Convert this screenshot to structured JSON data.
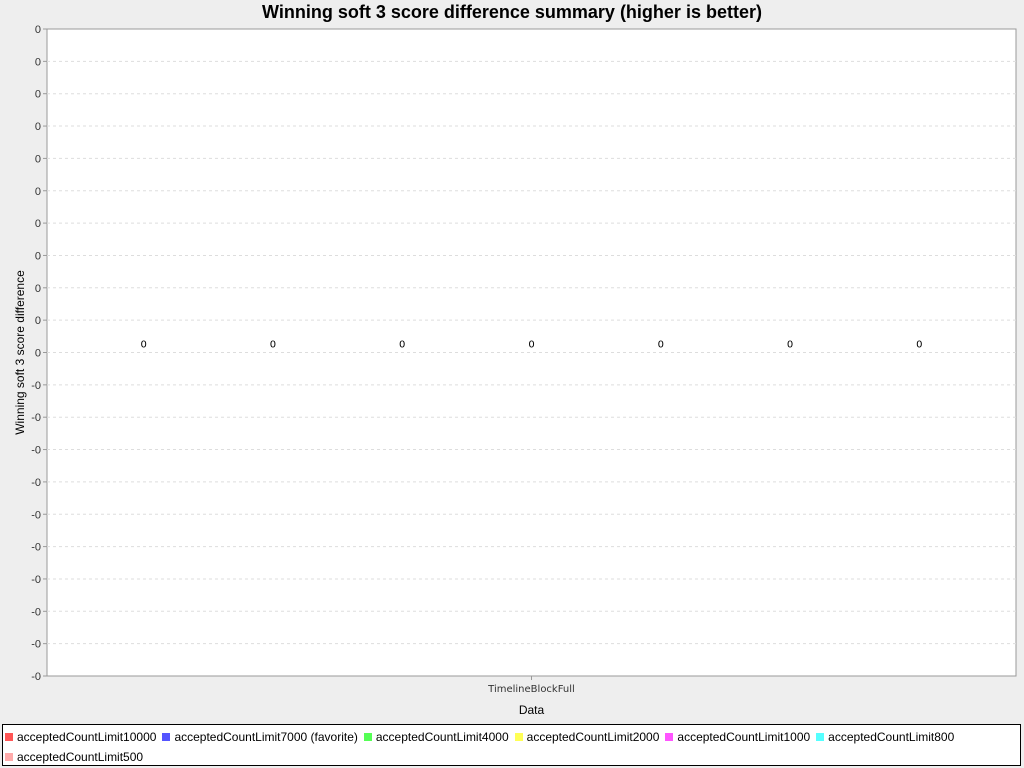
{
  "chart_data": {
    "type": "bar",
    "title": "Winning soft 3 score difference summary (higher is better)",
    "xlabel": "Data",
    "ylabel": "Winning soft 3 score difference",
    "categories": [
      "TimelineBlockFull"
    ],
    "series": [
      {
        "name": "acceptedCountLimit10000",
        "color": "#ff5555",
        "values": [
          0
        ]
      },
      {
        "name": "acceptedCountLimit7000 (favorite)",
        "color": "#5555ff",
        "values": [
          0
        ]
      },
      {
        "name": "acceptedCountLimit4000",
        "color": "#55ff55",
        "values": [
          0
        ]
      },
      {
        "name": "acceptedCountLimit2000",
        "color": "#ffff55",
        "values": [
          0
        ]
      },
      {
        "name": "acceptedCountLimit1000",
        "color": "#ff55ff",
        "values": [
          0
        ]
      },
      {
        "name": "acceptedCountLimit800",
        "color": "#55ffff",
        "values": [
          0
        ]
      },
      {
        "name": "acceptedCountLimit500",
        "color": "#ffaaaa",
        "values": [
          0
        ]
      }
    ],
    "data_labels": [
      "0",
      "0",
      "0",
      "0",
      "0",
      "0",
      "0"
    ],
    "y_tick_labels": [
      "0",
      "0",
      "0",
      "0",
      "0",
      "0",
      "0",
      "0",
      "0",
      "0",
      "0",
      "-0",
      "-0",
      "-0",
      "-0",
      "-0",
      "-0",
      "-0",
      "-0",
      "-0",
      "-0"
    ],
    "grid": true,
    "legend_position": "bottom"
  }
}
